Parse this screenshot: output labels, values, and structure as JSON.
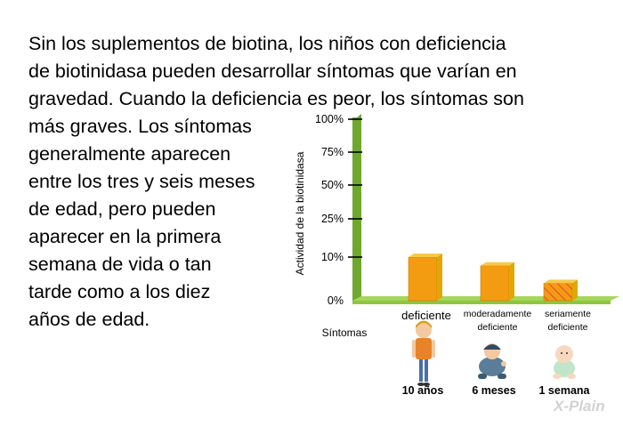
{
  "intro_lines": [
    "Sin los suplementos de biotina, los niños con deficiencia",
    "de biotinidasa pueden desarrollar síntomas que varían en",
    "gravedad. Cuando la deficiencia es peor, los síntomas son",
    "más graves. Los síntomas",
    "generalmente aparecen",
    "entre los tres y seis meses",
    "de edad, pero pueden",
    "aparecer en la primera",
    "semana de vida o tan",
    "tarde como a los diez",
    "años de edad."
  ],
  "chart_data": {
    "type": "bar",
    "ylabel": "Actividad de la biotinidasa",
    "xlabel": "Síntomas",
    "ytick_labels": [
      "0%",
      "10%",
      "25%",
      "50%",
      "75%",
      "100%"
    ],
    "categories": [
      {
        "lines": [
          "deficiente"
        ],
        "age": "10 años",
        "figure": "child-figure"
      },
      {
        "lines": [
          "moderadamente",
          "deficiente"
        ],
        "age": "6 meses",
        "figure": "toddler-figure"
      },
      {
        "lines": [
          "seriamente",
          "deficiente"
        ],
        "age": "1 semana",
        "figure": "infant-figure"
      }
    ],
    "values": [
      10,
      8,
      4
    ],
    "bar_styles": [
      "solid",
      "solid",
      "hatched"
    ],
    "colors": {
      "axis": "#8dc63f",
      "bar_front": "#f39c12",
      "bar_side": "#e0a800",
      "bar_top": "#f7c948",
      "hatch": "#e74c3c"
    }
  },
  "watermark": "X-Plain"
}
